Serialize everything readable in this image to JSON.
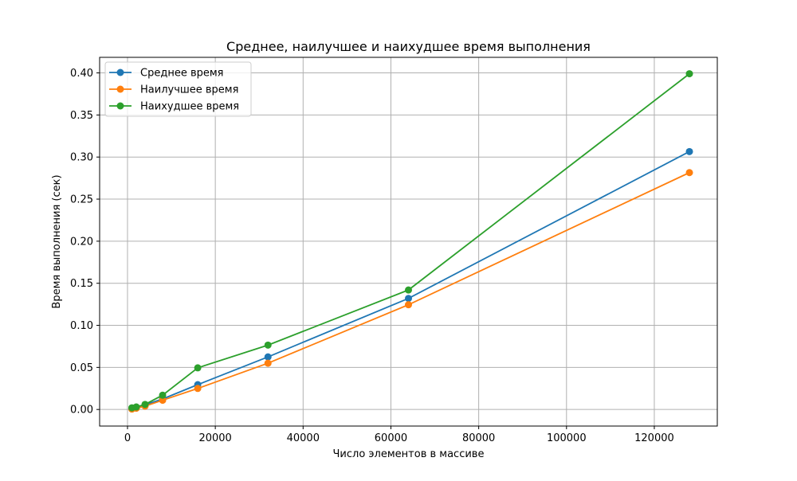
{
  "chart_data": {
    "type": "line",
    "title": "Среднее, наилучшее и наихудшее время выполнения",
    "xlabel": "Число элементов в массиве",
    "ylabel": "Время выполнения (сек)",
    "xlim": [
      -6350,
      134350
    ],
    "ylim": [
      -0.0197,
      0.4185
    ],
    "xticks": [
      0,
      20000,
      40000,
      60000,
      80000,
      100000,
      120000
    ],
    "yticks": [
      0.0,
      0.05,
      0.1,
      0.15,
      0.2,
      0.25,
      0.3,
      0.35,
      0.4
    ],
    "xtick_labels": [
      "0",
      "20000",
      "40000",
      "60000",
      "80000",
      "100000",
      "120000"
    ],
    "ytick_labels": [
      "0.00",
      "0.05",
      "0.10",
      "0.15",
      "0.20",
      "0.25",
      "0.30",
      "0.35",
      "0.40"
    ],
    "grid": true,
    "legend_position": "top-left",
    "x": [
      1000,
      2000,
      4000,
      8000,
      16000,
      32000,
      64000,
      128000
    ],
    "series": [
      {
        "name": "Среднее время",
        "color": "#1f77b4",
        "values": [
          0.001,
          0.002,
          0.0055,
          0.0125,
          0.0295,
          0.0625,
          0.132,
          0.3065
        ]
      },
      {
        "name": "Наилучшее время",
        "color": "#ff7f0e",
        "values": [
          0.0005,
          0.0015,
          0.004,
          0.011,
          0.025,
          0.055,
          0.1245,
          0.2815
        ]
      },
      {
        "name": "Наихудшее время",
        "color": "#2ca02c",
        "values": [
          0.002,
          0.003,
          0.006,
          0.017,
          0.0495,
          0.0765,
          0.142,
          0.399
        ]
      }
    ]
  }
}
